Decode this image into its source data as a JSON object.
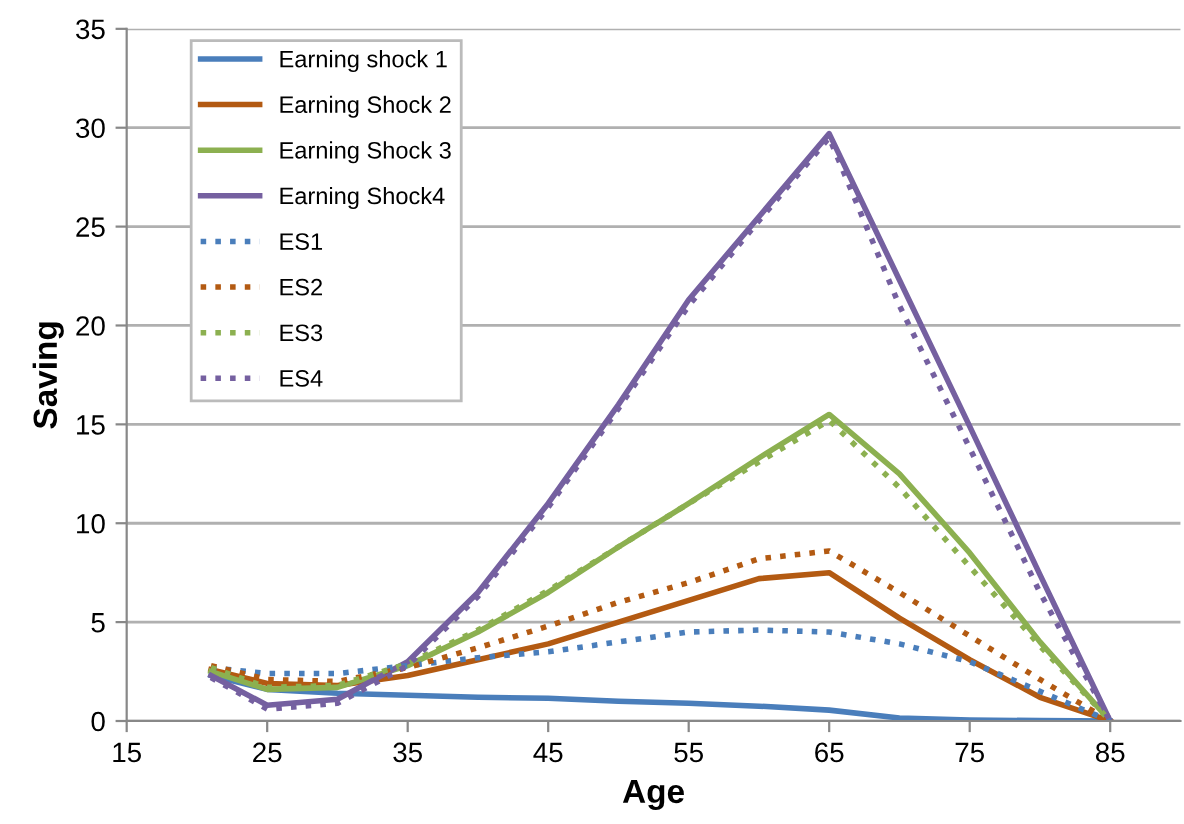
{
  "chart_data": {
    "type": "line",
    "xlabel": "Age",
    "ylabel": "Saving",
    "xlim": [
      15,
      90
    ],
    "xticks": [
      15,
      25,
      35,
      45,
      55,
      65,
      75,
      85
    ],
    "ylim": [
      0,
      35
    ],
    "yticks": [
      0,
      5,
      10,
      15,
      20,
      25,
      30,
      35
    ],
    "grid": "y",
    "legend": "top left",
    "marker": "none",
    "x": [
      21,
      25,
      30,
      35,
      40,
      45,
      50,
      55,
      60,
      65,
      70,
      75,
      80,
      85
    ],
    "series": [
      {
        "name": "Earning shock 1",
        "color": "#4a7ebb",
        "line_style": "solid",
        "values": [
          2.3,
          1.6,
          1.4,
          1.3,
          1.2,
          1.15,
          1.0,
          0.9,
          0.75,
          0.55,
          0.15,
          0.05,
          0.02,
          0
        ]
      },
      {
        "name": "Earning Shock 2",
        "color": "#b35a12",
        "line_style": "solid",
        "values": [
          2.6,
          1.9,
          1.8,
          2.3,
          3.1,
          3.9,
          5.0,
          6.1,
          7.2,
          7.5,
          5.2,
          3.1,
          1.2,
          0
        ]
      },
      {
        "name": "Earning Shock 3",
        "color": "#8cb050",
        "line_style": "solid",
        "values": [
          2.5,
          1.6,
          1.7,
          2.8,
          4.5,
          6.5,
          8.8,
          11.0,
          13.3,
          15.5,
          12.5,
          8.5,
          4.0,
          0
        ]
      },
      {
        "name": "Earning Shock4",
        "color": "#7560a0",
        "line_style": "solid",
        "values": [
          2.3,
          0.8,
          1.1,
          3.0,
          6.5,
          11.0,
          16.0,
          21.3,
          25.5,
          29.7,
          22.3,
          14.9,
          7.4,
          0
        ]
      },
      {
        "name": "ES1",
        "color": "#4a7ebb",
        "line_style": "dotted",
        "values": [
          2.7,
          2.4,
          2.4,
          2.8,
          3.2,
          3.5,
          4.0,
          4.5,
          4.6,
          4.5,
          3.9,
          3.0,
          1.5,
          0
        ]
      },
      {
        "name": "ES2",
        "color": "#b35a12",
        "line_style": "dotted",
        "values": [
          2.8,
          2.1,
          2.0,
          2.7,
          3.7,
          4.8,
          6.0,
          7.0,
          8.2,
          8.6,
          6.5,
          4.3,
          2.1,
          0
        ]
      },
      {
        "name": "ES3",
        "color": "#8cb050",
        "line_style": "dotted",
        "values": [
          2.7,
          1.7,
          1.8,
          2.9,
          4.6,
          6.6,
          8.8,
          11.0,
          13.1,
          15.2,
          11.8,
          7.8,
          3.8,
          0
        ]
      },
      {
        "name": "ES4",
        "color": "#7560a0",
        "line_style": "dotted",
        "values": [
          2.2,
          0.6,
          0.9,
          2.8,
          6.3,
          10.8,
          15.8,
          21.0,
          25.3,
          29.5,
          21.0,
          13.8,
          6.5,
          0
        ]
      }
    ]
  }
}
